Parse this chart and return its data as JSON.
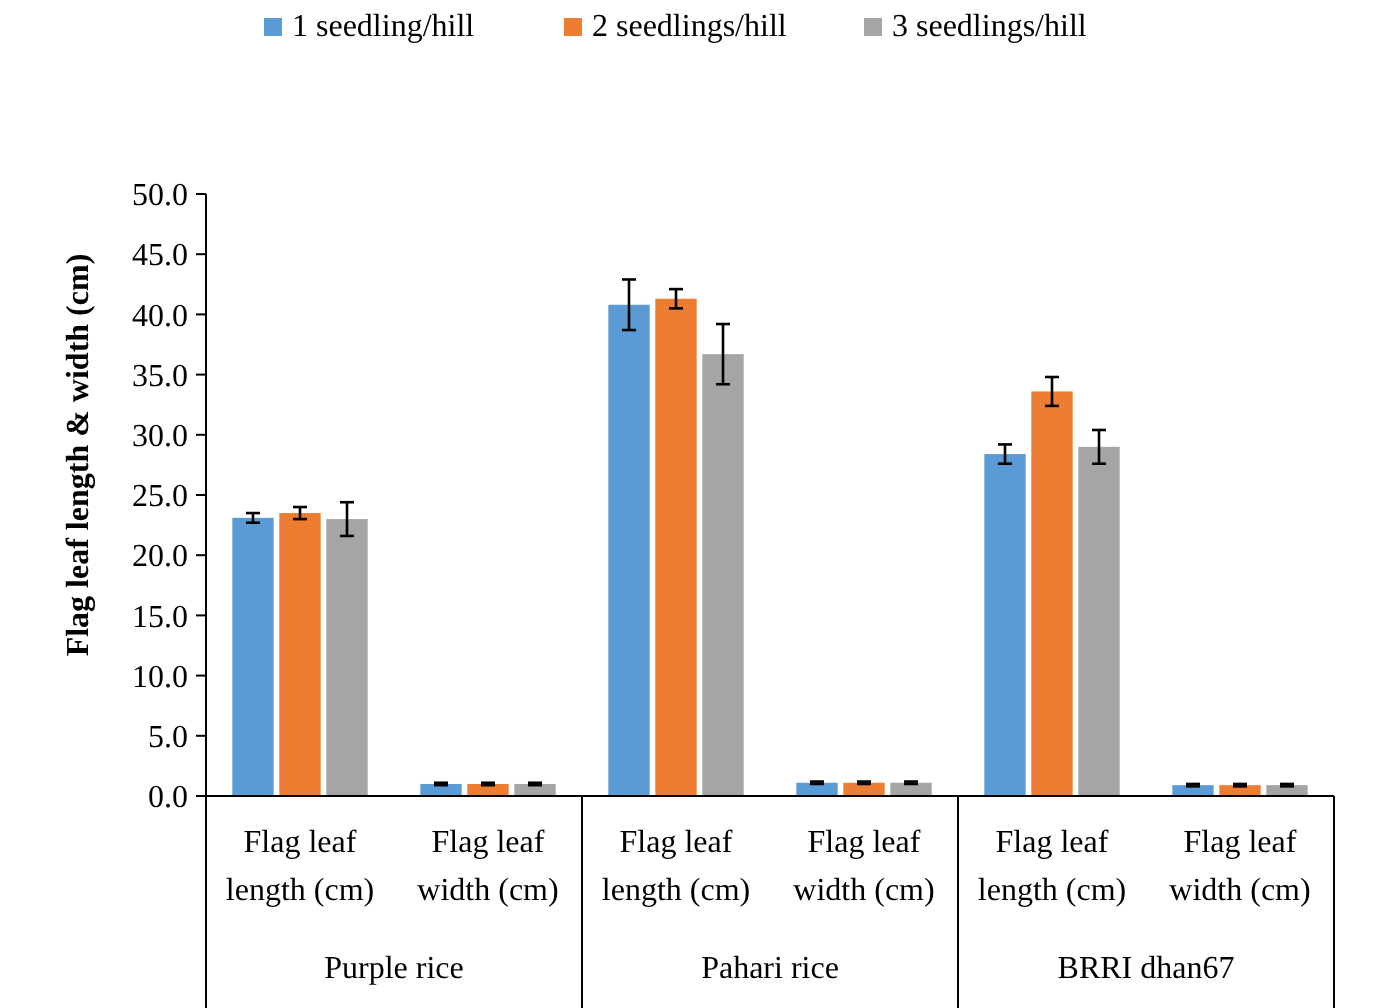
{
  "chart_data": {
    "type": "bar",
    "ylabel": "Flag leaf length & width (cm)",
    "categories": [
      "Flag leaf length (cm)",
      "Flag leaf width (cm)",
      "Flag leaf length (cm)",
      "Flag leaf width (cm)",
      "Flag leaf length (cm)",
      "Flag leaf width (cm)"
    ],
    "series": [
      {
        "name": "1 seedling/hill",
        "color": "#5b9bd5",
        "values": [
          23.1,
          1.0,
          40.8,
          1.1,
          28.4,
          0.9
        ],
        "errors": [
          0.4,
          0.1,
          2.1,
          0.1,
          0.8,
          0.1
        ]
      },
      {
        "name": "2 seedlings/hill",
        "color": "#ed7d31",
        "values": [
          23.5,
          1.0,
          41.3,
          1.1,
          33.6,
          0.9
        ],
        "errors": [
          0.5,
          0.1,
          0.8,
          0.1,
          1.2,
          0.1
        ]
      },
      {
        "name": "3 seedlings/hill",
        "color": "#a5a5a5",
        "values": [
          23.0,
          1.0,
          36.7,
          1.1,
          29.0,
          0.9
        ],
        "errors": [
          1.4,
          0.1,
          2.5,
          0.1,
          1.4,
          0.1
        ]
      }
    ],
    "annotations": [
      "Purple rice",
      "Pahari rice",
      "BRRI dhan67"
    ],
    "ylim": [
      0,
      50
    ],
    "yticks": [
      {
        "value": 0,
        "label": "0.0"
      },
      {
        "value": 5,
        "label": "5.0"
      },
      {
        "value": 10,
        "label": "10.0"
      },
      {
        "value": 15,
        "label": "15.0"
      },
      {
        "value": 20,
        "label": "20.0"
      },
      {
        "value": 25,
        "label": "25.0"
      },
      {
        "value": 30,
        "label": "30.0"
      },
      {
        "value": 35,
        "label": "35.0"
      },
      {
        "value": 40,
        "label": "40.0"
      },
      {
        "value": 45,
        "label": "45.0"
      },
      {
        "value": 50,
        "label": "50.0"
      }
    ],
    "legend": "top",
    "grid": false
  }
}
